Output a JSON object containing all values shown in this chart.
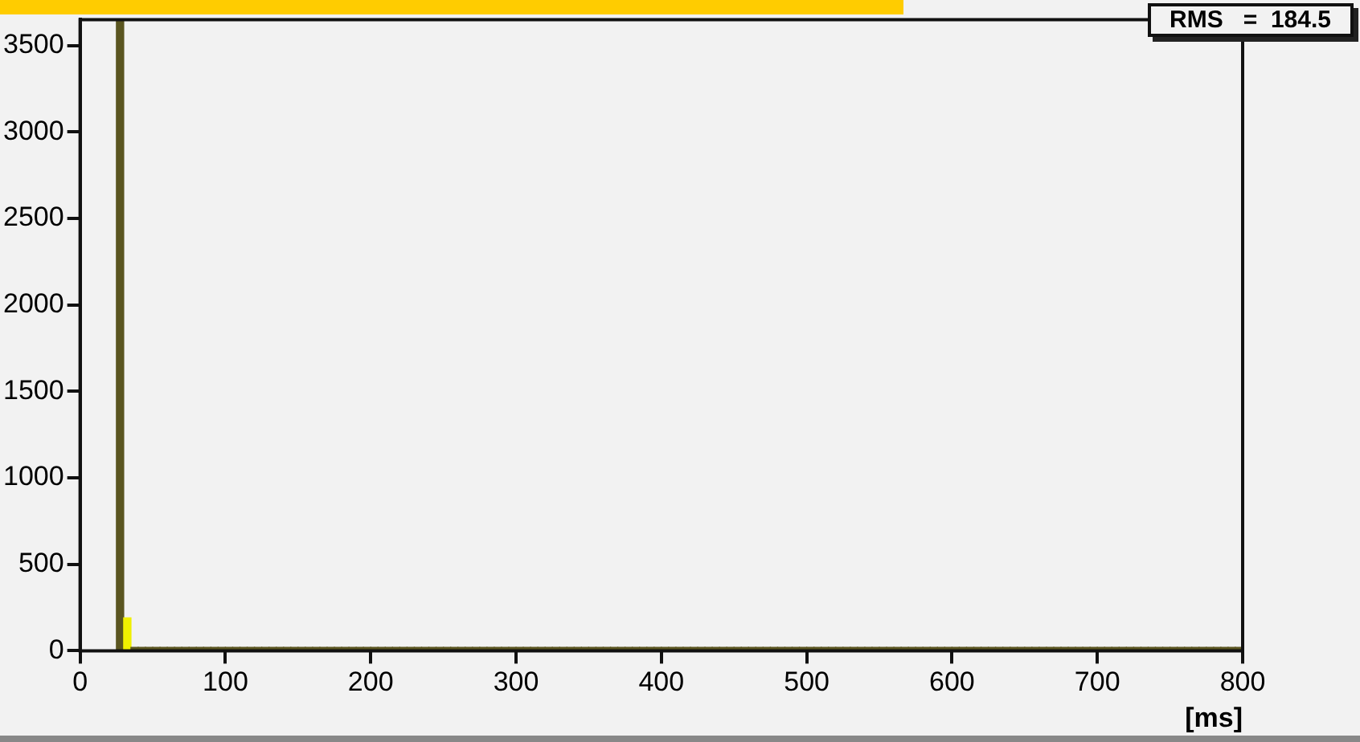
{
  "chart_data": {
    "type": "histogram",
    "xlabel": "[ms]",
    "annotations": [
      "RMS   =  184.5"
    ],
    "bins": [
      0,
      5,
      10,
      15,
      20,
      25,
      30,
      35,
      40,
      45,
      50,
      55,
      60,
      65,
      70,
      75,
      80,
      85,
      90,
      95,
      100,
      105,
      110,
      115,
      120,
      125,
      130,
      135,
      140,
      145,
      150,
      155,
      160,
      165,
      170,
      175,
      180,
      185,
      190,
      195,
      200,
      205,
      210,
      215,
      220,
      225,
      230,
      235,
      240,
      245,
      250,
      255,
      260,
      265,
      270,
      275,
      280,
      285,
      290,
      295,
      300,
      305,
      310,
      315,
      320,
      325,
      330,
      335,
      340,
      345,
      350,
      355,
      360,
      365,
      370,
      375,
      380,
      385,
      390,
      395,
      400,
      405,
      410,
      415,
      420,
      425,
      430,
      435,
      440,
      445,
      450,
      455,
      460,
      465,
      470,
      475,
      480,
      485,
      490,
      495,
      500,
      505,
      510,
      515,
      520,
      525,
      530,
      535,
      540,
      545,
      550,
      555,
      560,
      565,
      570,
      575,
      580,
      585,
      590,
      595,
      600,
      605,
      610,
      615,
      620,
      625,
      630,
      635,
      640,
      645,
      650,
      655,
      660,
      665,
      670,
      675,
      680,
      685,
      690,
      695,
      700,
      705,
      710,
      715,
      720,
      725,
      730,
      735,
      740,
      745,
      750,
      755,
      760,
      765,
      770,
      775,
      780,
      785,
      790,
      795,
      800
    ],
    "values": [
      0,
      0,
      0,
      0,
      0,
      3650,
      190,
      20,
      20,
      20,
      20,
      20,
      20,
      20,
      20,
      20,
      20,
      20,
      20,
      20,
      20,
      20,
      20,
      20,
      20,
      20,
      20,
      20,
      20,
      20,
      20,
      20,
      20,
      20,
      20,
      20,
      20,
      20,
      20,
      20,
      20,
      20,
      20,
      20,
      20,
      20,
      20,
      20,
      20,
      20,
      20,
      20,
      20,
      20,
      20,
      20,
      20,
      20,
      20,
      20,
      20,
      20,
      20,
      20,
      20,
      20,
      20,
      20,
      20,
      20,
      20,
      20,
      20,
      20,
      20,
      20,
      20,
      20,
      20,
      20,
      20,
      20,
      20,
      20,
      20,
      20,
      20,
      20,
      20,
      20,
      20,
      20,
      20,
      20,
      20,
      20,
      20,
      20,
      20,
      20,
      20,
      20,
      20,
      20,
      20,
      20,
      20,
      20,
      20,
      20,
      20,
      20,
      20,
      20,
      20,
      20,
      20,
      20,
      20,
      20,
      20,
      20,
      20,
      20,
      20,
      20,
      20,
      20,
      20,
      20,
      20,
      20,
      20,
      20,
      20,
      20,
      20,
      20,
      20,
      20,
      20,
      20,
      20,
      20,
      20,
      20,
      20,
      20,
      20,
      20,
      20,
      20,
      20,
      20,
      20,
      20,
      20,
      20,
      20,
      20
    ],
    "colors": [
      "#5a5520",
      "#5a5520",
      "#5a5520",
      "#5a5520",
      "#5a5520",
      "#5a5520",
      "#f0f000",
      "#5a5520",
      "#5a5520",
      "#5a5520",
      "#5a5520",
      "#5a5520",
      "#5a5520",
      "#5a5520",
      "#5a5520",
      "#5a5520",
      "#5a5520",
      "#5a5520",
      "#5a5520",
      "#5a5520",
      "#5a5520",
      "#5a5520",
      "#5a5520",
      "#5a5520",
      "#5a5520",
      "#5a5520",
      "#5a5520",
      "#5a5520",
      "#5a5520",
      "#5a5520",
      "#5a5520",
      "#5a5520",
      "#5a5520",
      "#5a5520",
      "#5a5520",
      "#5a5520",
      "#5a5520",
      "#5a5520",
      "#5a5520",
      "#5a5520",
      "#5a5520",
      "#5a5520",
      "#5a5520",
      "#5a5520",
      "#5a5520",
      "#5a5520",
      "#5a5520",
      "#5a5520",
      "#5a5520",
      "#5a5520",
      "#5a5520",
      "#5a5520",
      "#5a5520",
      "#5a5520",
      "#5a5520",
      "#5a5520",
      "#5a5520",
      "#5a5520",
      "#5a5520",
      "#5a5520",
      "#5a5520",
      "#5a5520",
      "#5a5520",
      "#5a5520",
      "#5a5520",
      "#5a5520",
      "#5a5520",
      "#5a5520",
      "#5a5520",
      "#5a5520",
      "#5a5520",
      "#5a5520",
      "#5a5520",
      "#5a5520",
      "#5a5520",
      "#5a5520",
      "#5a5520",
      "#5a5520",
      "#5a5520",
      "#5a5520",
      "#5a5520",
      "#5a5520",
      "#5a5520",
      "#5a5520",
      "#5a5520",
      "#5a5520",
      "#5a5520",
      "#5a5520",
      "#5a5520",
      "#5a5520",
      "#5a5520",
      "#5a5520",
      "#5a5520",
      "#5a5520",
      "#5a5520",
      "#5a5520",
      "#5a5520",
      "#5a5520",
      "#5a5520",
      "#5a5520",
      "#5a5520",
      "#5a5520",
      "#5a5520",
      "#5a5520",
      "#5a5520",
      "#5a5520",
      "#5a5520",
      "#5a5520",
      "#5a5520",
      "#5a5520",
      "#5a5520",
      "#5a5520",
      "#5a5520",
      "#5a5520",
      "#5a5520",
      "#5a5520",
      "#5a5520",
      "#5a5520",
      "#5a5520",
      "#5a5520",
      "#5a5520",
      "#5a5520",
      "#5a5520",
      "#5a5520",
      "#5a5520",
      "#5a5520",
      "#5a5520",
      "#5a5520",
      "#5a5520",
      "#5a5520",
      "#5a5520",
      "#5a5520",
      "#5a5520",
      "#5a5520",
      "#5a5520",
      "#5a5520",
      "#5a5520",
      "#5a5520",
      "#5a5520",
      "#5a5520",
      "#5a5520",
      "#5a5520",
      "#5a5520",
      "#5a5520",
      "#5a5520",
      "#5a5520",
      "#5a5520",
      "#5a5520",
      "#5a5520",
      "#5a5520",
      "#5a5520",
      "#5a5520",
      "#5a5520",
      "#5a5520",
      "#5a5520",
      "#5a5520",
      "#5a5520",
      "#5a5520",
      "#5a5520",
      "#5a5520"
    ],
    "xlim": [
      0,
      800
    ],
    "xticks": [
      0,
      100,
      200,
      300,
      400,
      500,
      600,
      700,
      800
    ],
    "ylim": [
      0,
      3650
    ],
    "yticks": [
      0,
      500,
      1000,
      1500,
      2000,
      2500,
      3000,
      3500
    ],
    "grid": false,
    "legend": false
  }
}
